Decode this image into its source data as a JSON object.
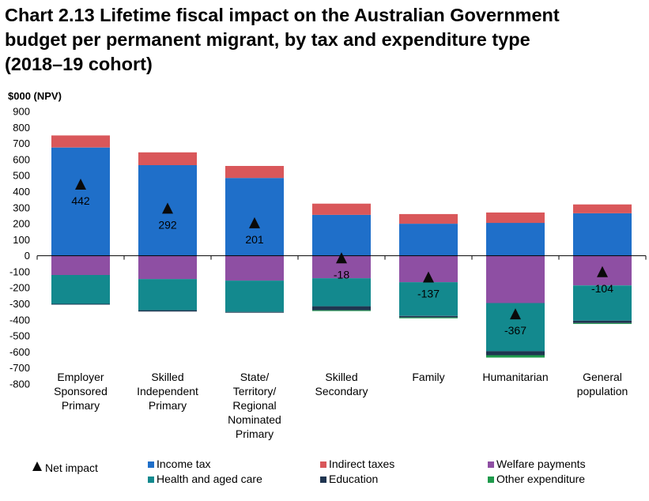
{
  "chart_data": {
    "type": "bar",
    "stacked": true,
    "title_line1": "Chart 2.13  Lifetime fiscal impact on the Australian Government",
    "title_line2": "budget per permanent migrant, by tax and expenditure type",
    "title_line3": "(2018–19 cohort)",
    "ylabel": "$000 (NPV)",
    "ylim": [
      -800,
      900
    ],
    "yticks": [
      900,
      800,
      700,
      600,
      500,
      400,
      300,
      200,
      100,
      0,
      -100,
      -200,
      -300,
      -400,
      -500,
      -600,
      -700,
      -800
    ],
    "categories": [
      [
        "Employer",
        "Sponsored",
        "Primary"
      ],
      [
        "Skilled",
        "Independent",
        "Primary"
      ],
      [
        "State/",
        "Territory/",
        "Regional",
        "Nominated",
        "Primary"
      ],
      [
        "Skilled",
        "Secondary"
      ],
      [
        "Family"
      ],
      [
        "Humanitarian"
      ],
      [
        "General",
        "population"
      ]
    ],
    "series": [
      {
        "name": "Income tax",
        "color": "#1f6fc9",
        "values": [
          675,
          565,
          485,
          255,
          200,
          205,
          265
        ]
      },
      {
        "name": "Indirect taxes",
        "color": "#d9575a",
        "values": [
          75,
          80,
          75,
          70,
          60,
          65,
          55
        ]
      },
      {
        "name": "Welfare payments",
        "color": "#8e4fa3",
        "values": [
          -120,
          -145,
          -155,
          -140,
          -165,
          -295,
          -185
        ]
      },
      {
        "name": "Health and aged care",
        "color": "#13898e",
        "values": [
          -180,
          -195,
          -195,
          -175,
          -210,
          -300,
          -220
        ]
      },
      {
        "name": "Education",
        "color": "#1f3550",
        "values": [
          -5,
          -8,
          -5,
          -25,
          -10,
          -25,
          -15
        ]
      },
      {
        "name": "Other expenditure",
        "color": "#1f9a4c",
        "values": [
          0,
          0,
          0,
          -5,
          -5,
          -15,
          -5
        ]
      }
    ],
    "net_impact": {
      "name": "Net impact",
      "values": [
        442,
        292,
        201,
        -18,
        -137,
        -367,
        -104
      ],
      "labels": [
        "442",
        "292",
        "201",
        "-18",
        "-137",
        "-367",
        "-104"
      ]
    },
    "legend_placement": "bottom",
    "grid": false
  }
}
